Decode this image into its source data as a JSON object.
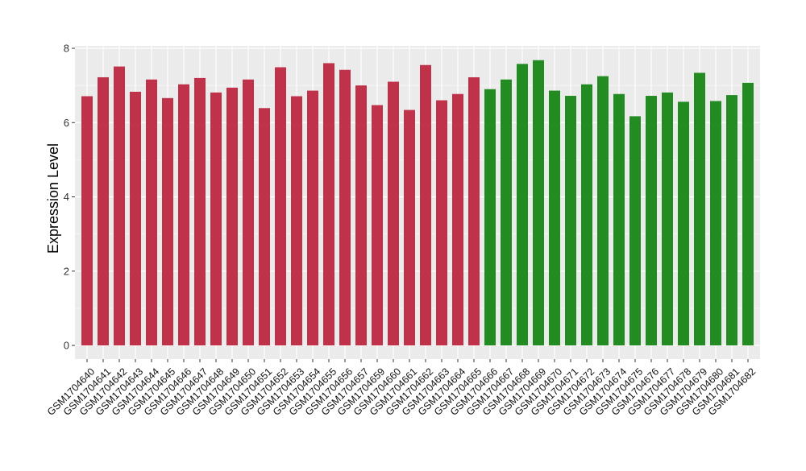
{
  "chart_data": {
    "type": "bar",
    "title": "",
    "xlabel": "",
    "ylabel": "Expression Level",
    "ylim": [
      0,
      8
    ],
    "yticks": [
      "0",
      "2",
      "4",
      "6",
      "8"
    ],
    "grid": true,
    "legend": "none",
    "colors": {
      "group_a": "#C0314A",
      "group_b": "#228B22",
      "panel": "#EBEBEB",
      "gridline": "#FFFFFF"
    },
    "categories": [
      "GSM1704640",
      "GSM1704641",
      "GSM1704642",
      "GSM1704643",
      "GSM1704644",
      "GSM1704645",
      "GSM1704646",
      "GSM1704647",
      "GSM1704648",
      "GSM1704649",
      "GSM1704650",
      "GSM1704651",
      "GSM1704652",
      "GSM1704653",
      "GSM1704654",
      "GSM1704655",
      "GSM1704656",
      "GSM1704657",
      "GSM1704659",
      "GSM1704660",
      "GSM1704661",
      "GSM1704662",
      "GSM1704663",
      "GSM1704664",
      "GSM1704665",
      "GSM1704666",
      "GSM1704667",
      "GSM1704668",
      "GSM1704669",
      "GSM1704670",
      "GSM1704671",
      "GSM1704672",
      "GSM1704673",
      "GSM1704674",
      "GSM1704675",
      "GSM1704676",
      "GSM1704677",
      "GSM1704678",
      "GSM1704679",
      "GSM1704680",
      "GSM1704681",
      "GSM1704682"
    ],
    "values": [
      6.71,
      7.22,
      7.51,
      6.83,
      7.16,
      6.66,
      7.03,
      7.2,
      6.81,
      6.94,
      7.16,
      6.39,
      7.49,
      6.71,
      6.86,
      7.6,
      7.42,
      7.0,
      6.47,
      7.1,
      6.34,
      7.55,
      6.6,
      6.77,
      7.22,
      6.9,
      7.16,
      7.58,
      7.68,
      6.86,
      6.72,
      7.03,
      7.25,
      6.77,
      6.17,
      6.72,
      6.81,
      6.56,
      7.34,
      6.58,
      6.74,
      7.07
    ],
    "groups": [
      "a",
      "a",
      "a",
      "a",
      "a",
      "a",
      "a",
      "a",
      "a",
      "a",
      "a",
      "a",
      "a",
      "a",
      "a",
      "a",
      "a",
      "a",
      "a",
      "a",
      "a",
      "a",
      "a",
      "a",
      "a",
      "b",
      "b",
      "b",
      "b",
      "b",
      "b",
      "b",
      "b",
      "b",
      "b",
      "b",
      "b",
      "b",
      "b",
      "b",
      "b",
      "b"
    ]
  }
}
